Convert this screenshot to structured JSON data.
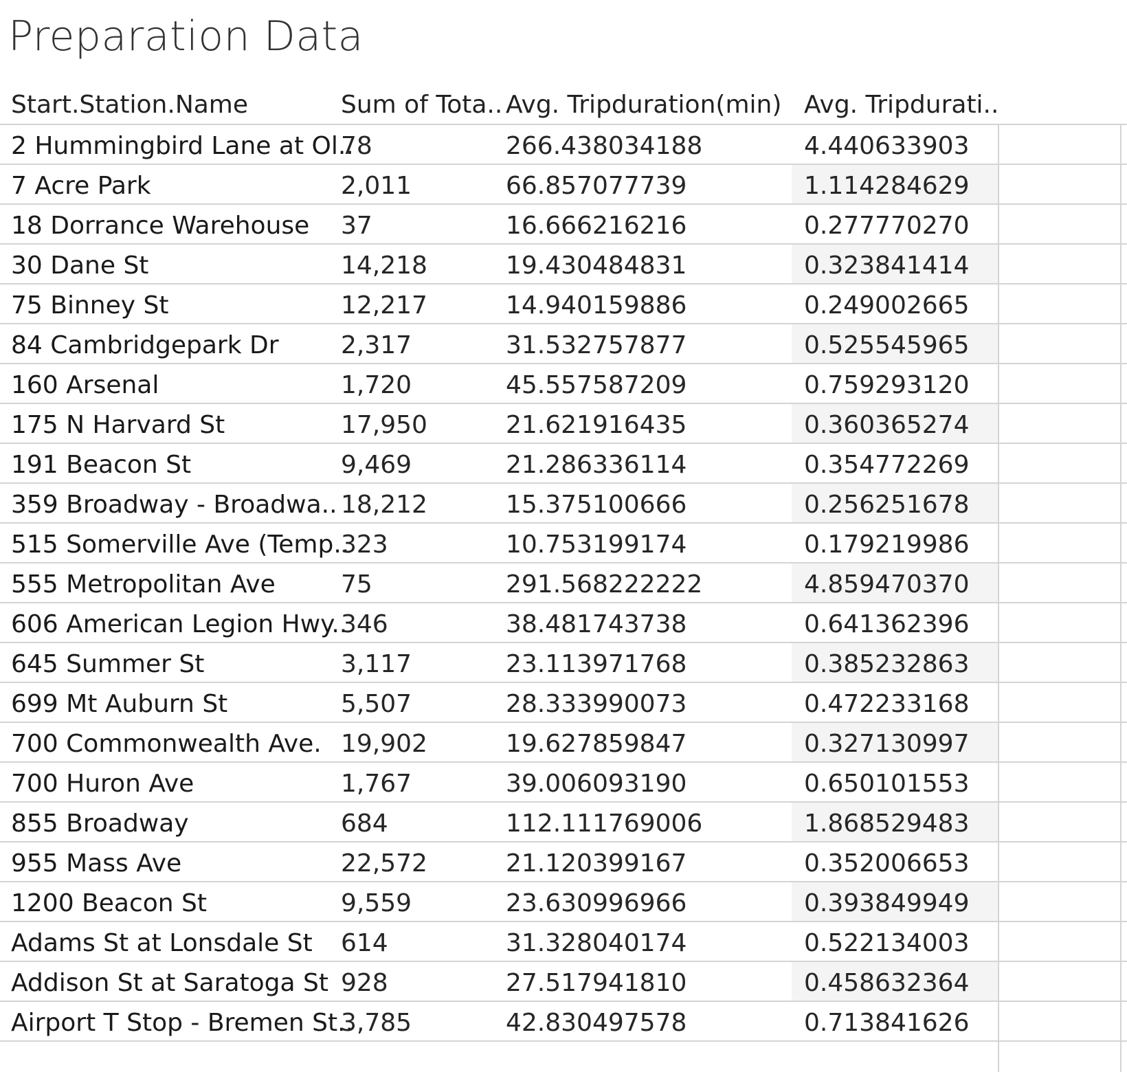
{
  "title": "Preparation Data",
  "columns": [
    "Start.Station.Name",
    "Sum of Tota..",
    "Avg. Tripduration(min)",
    "Avg. Tripdurati.."
  ],
  "rows": [
    [
      "2 Hummingbird Lane at Ol..",
      "78",
      "266.438034188",
      "4.440633903"
    ],
    [
      "7 Acre Park",
      "2,011",
      "66.857077739",
      "1.114284629"
    ],
    [
      "18 Dorrance Warehouse",
      "37",
      "16.666216216",
      "0.277770270"
    ],
    [
      "30 Dane St",
      "14,218",
      "19.430484831",
      "0.323841414"
    ],
    [
      "75 Binney St",
      "12,217",
      "14.940159886",
      "0.249002665"
    ],
    [
      "84 Cambridgepark Dr",
      "2,317",
      "31.532757877",
      "0.525545965"
    ],
    [
      "160 Arsenal",
      "1,720",
      "45.557587209",
      "0.759293120"
    ],
    [
      "175 N Harvard St",
      "17,950",
      "21.621916435",
      "0.360365274"
    ],
    [
      "191 Beacon St",
      "9,469",
      "21.286336114",
      "0.354772269"
    ],
    [
      "359 Broadway - Broadwa..",
      "18,212",
      "15.375100666",
      "0.256251678"
    ],
    [
      "515 Somerville Ave (Temp..",
      "323",
      "10.753199174",
      "0.179219986"
    ],
    [
      "555 Metropolitan Ave",
      "75",
      "291.568222222",
      "4.859470370"
    ],
    [
      "606 American Legion Hwy..",
      "346",
      "38.481743738",
      "0.641362396"
    ],
    [
      "645 Summer St",
      "3,117",
      "23.113971768",
      "0.385232863"
    ],
    [
      "699 Mt Auburn St",
      "5,507",
      "28.333990073",
      "0.472233168"
    ],
    [
      "700 Commonwealth Ave.",
      "19,902",
      "19.627859847",
      "0.327130997"
    ],
    [
      "700 Huron Ave",
      "1,767",
      "39.006093190",
      "0.650101553"
    ],
    [
      "855 Broadway",
      "684",
      "112.111769006",
      "1.868529483"
    ],
    [
      "955 Mass Ave",
      "22,572",
      "21.120399167",
      "0.352006653"
    ],
    [
      "1200 Beacon St",
      "9,559",
      "23.630996966",
      "0.393849949"
    ],
    [
      "Adams St at Lonsdale St",
      "614",
      "31.328040174",
      "0.522134003"
    ],
    [
      "Addison St at Saratoga St",
      "928",
      "27.517941810",
      "0.458632364"
    ],
    [
      "Airport T Stop - Bremen St..",
      "3,785",
      "42.830497578",
      "0.713841626"
    ]
  ]
}
